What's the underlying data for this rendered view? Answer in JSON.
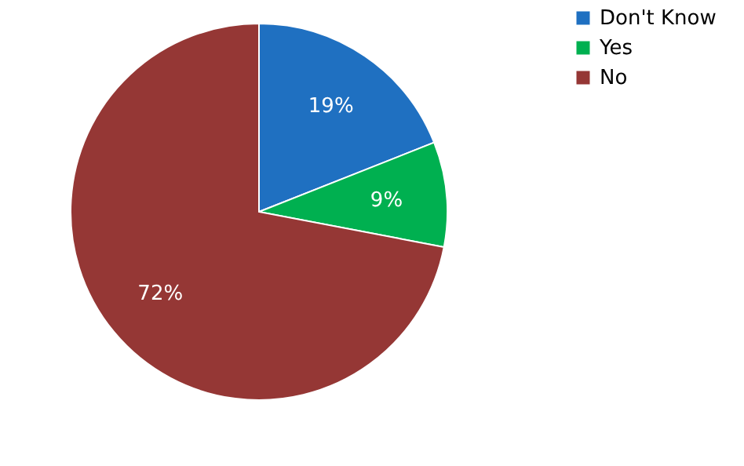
{
  "chart_data": {
    "type": "pie",
    "categories": [
      "Don't Know",
      "Yes",
      "No"
    ],
    "values": [
      19,
      9,
      72
    ],
    "colors": [
      "#1f70c1",
      "#00b050",
      "#953735"
    ],
    "value_labels": [
      "19%",
      "9%",
      "72%"
    ],
    "legend": "right"
  }
}
